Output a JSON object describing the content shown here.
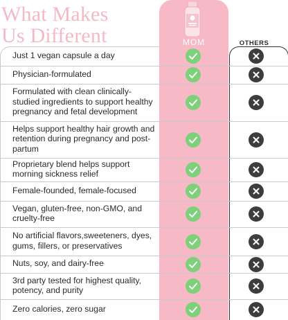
{
  "headline": {
    "line1": "What Makes",
    "line2": "Us Different"
  },
  "brand": "MOM",
  "others_label": "OTHERS",
  "colors": {
    "accent_pink": "#f6b9c5",
    "headline_pink": "#f4b9c6",
    "check_green": "#7cd17a",
    "cross_dark": "#3d3d3d"
  },
  "icons": {
    "yes": "check-circle-icon",
    "no": "x-circle-icon"
  },
  "rows": [
    {
      "text": "Just 1 vegan capsule a day"
    },
    {
      "text": "Physician-formulated"
    },
    {
      "text": "Formulated with clean clinically-studied ingredients to support healthy pregnancy and fetal development"
    },
    {
      "text": "Helps support healthy hair growth and retention during pregnancy and post-partum"
    },
    {
      "text": "Proprietary blend helps support morning sickness relief"
    },
    {
      "text": "Female-founded, female-focused"
    },
    {
      "text": "Vegan, gluten-free, non-GMO, and cruelty-free"
    },
    {
      "text": "No artificial flavors,sweeteners, dyes, gums, fillers, or preservatives"
    },
    {
      "text": "Nuts, soy, and dairy-free"
    },
    {
      "text": "3rd party tested for highest quality, potency, and purity"
    },
    {
      "text": "Zero calories, zero sugar"
    }
  ]
}
